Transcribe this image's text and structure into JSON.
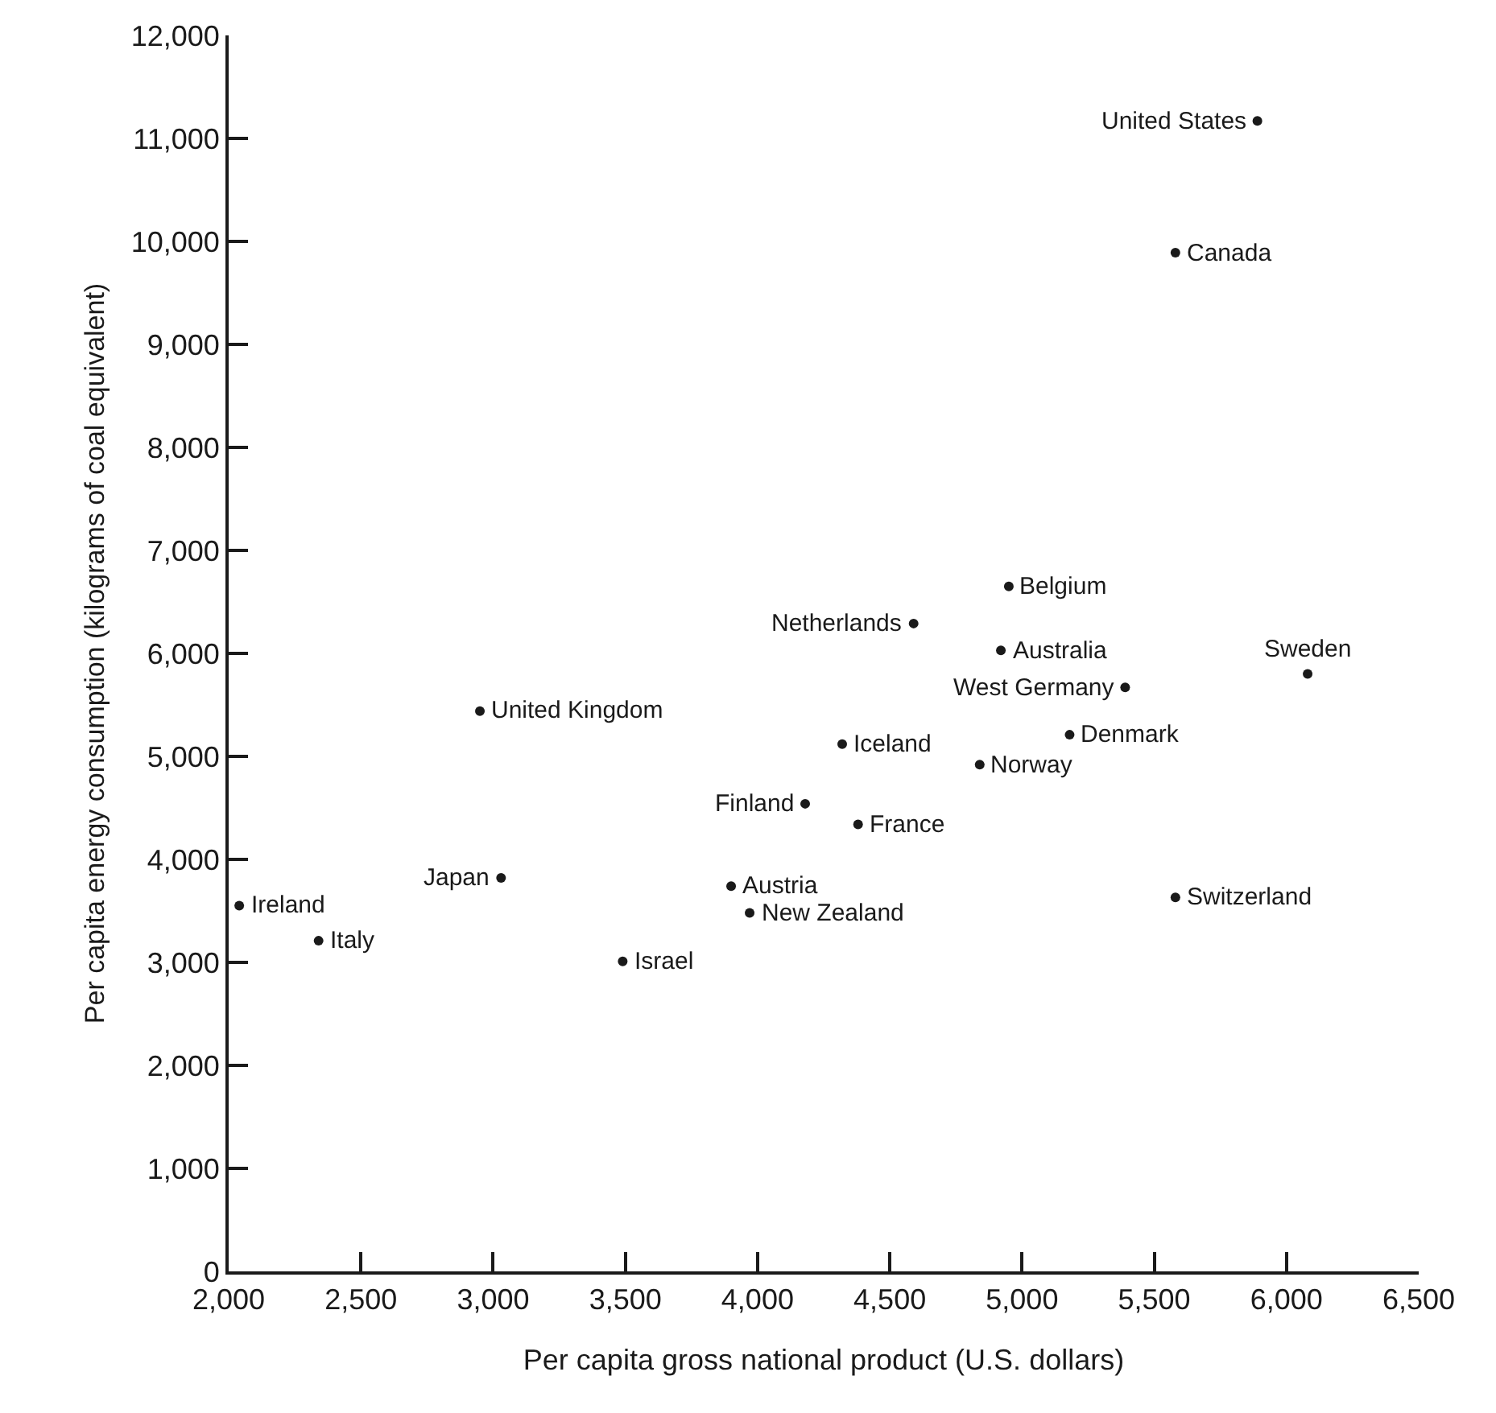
{
  "chart_data": {
    "type": "scatter",
    "xlabel": "Per capita gross national product (U.S. dollars)",
    "ylabel": "Per capita energy consumption (kilograms of coal equivalent)",
    "x": [
      2040,
      2340,
      3030,
      2950,
      3490,
      3900,
      3970,
      4180,
      4380,
      4320,
      4840,
      5180,
      5580,
      5390,
      6080,
      4920,
      4950,
      4590,
      5580,
      5890
    ],
    "values": [
      3550,
      3210,
      3820,
      5440,
      3010,
      3740,
      3480,
      4540,
      4340,
      5120,
      4920,
      5210,
      3630,
      5670,
      5800,
      6030,
      6650,
      6290,
      9890,
      11170
    ],
    "color": "#1a1a1a",
    "marker": "circle",
    "xlim": [
      2000,
      6500
    ],
    "xticks": [
      {
        "value": 2000,
        "label": "2,000"
      },
      {
        "value": 2500,
        "label": "2,500"
      },
      {
        "value": 3000,
        "label": "3,000"
      },
      {
        "value": 3500,
        "label": "3,500"
      },
      {
        "value": 4000,
        "label": "4,000"
      },
      {
        "value": 4500,
        "label": "4,500"
      },
      {
        "value": 5000,
        "label": "5,000"
      },
      {
        "value": 5500,
        "label": "5,500"
      },
      {
        "value": 6000,
        "label": "6,000"
      },
      {
        "value": 6500,
        "label": "6,500"
      }
    ],
    "ylim": [
      0,
      12000
    ],
    "yticks": [
      0,
      {
        "value": 1000,
        "label": "1,000"
      },
      {
        "value": 2000,
        "label": "2,000"
      },
      {
        "value": 3000,
        "label": "3,000"
      },
      {
        "value": 4000,
        "label": "4,000"
      },
      {
        "value": 5000,
        "label": "5,000"
      },
      {
        "value": 6000,
        "label": "6,000"
      },
      {
        "value": 7000,
        "label": "7,000"
      },
      {
        "value": 8000,
        "label": "8,000"
      },
      {
        "value": 9000,
        "label": "9,000"
      },
      {
        "value": 10000,
        "label": "10,000"
      },
      {
        "value": 11000,
        "label": "11,000"
      },
      {
        "value": 12000,
        "label": "12,000"
      }
    ],
    "annotations": [
      {
        "text": "Ireland",
        "x": 2040,
        "y": 3550
      },
      {
        "text": "Italy",
        "x": 2340,
        "y": 3210
      },
      {
        "text": "Japan",
        "x": 3030,
        "y": 3820
      },
      {
        "text": "United Kingdom",
        "x": 2950,
        "y": 5440
      },
      {
        "text": "Israel",
        "x": 3490,
        "y": 3010
      },
      {
        "text": "Austria",
        "x": 3900,
        "y": 3740
      },
      {
        "text": "New Zealand",
        "x": 3970,
        "y": 3480
      },
      {
        "text": "Finland",
        "x": 4180,
        "y": 4540
      },
      {
        "text": "France",
        "x": 4380,
        "y": 4340
      },
      {
        "text": "Iceland",
        "x": 4320,
        "y": 5120
      },
      {
        "text": "Norway",
        "x": 4840,
        "y": 4920
      },
      {
        "text": "Denmark",
        "x": 5180,
        "y": 5210
      },
      {
        "text": "Switzerland",
        "x": 5580,
        "y": 3630
      },
      {
        "text": "West Germany",
        "x": 5390,
        "y": 5670
      },
      {
        "text": "Sweden",
        "x": 6080,
        "y": 5800
      },
      {
        "text": "Australia",
        "x": 4920,
        "y": 6030
      },
      {
        "text": "Belgium",
        "x": 4950,
        "y": 6650
      },
      {
        "text": "Netherlands",
        "x": 4590,
        "y": 6290
      },
      {
        "text": "Canada",
        "x": 5580,
        "y": 9890
      },
      {
        "text": "United States",
        "x": 5890,
        "y": 11170
      }
    ]
  }
}
